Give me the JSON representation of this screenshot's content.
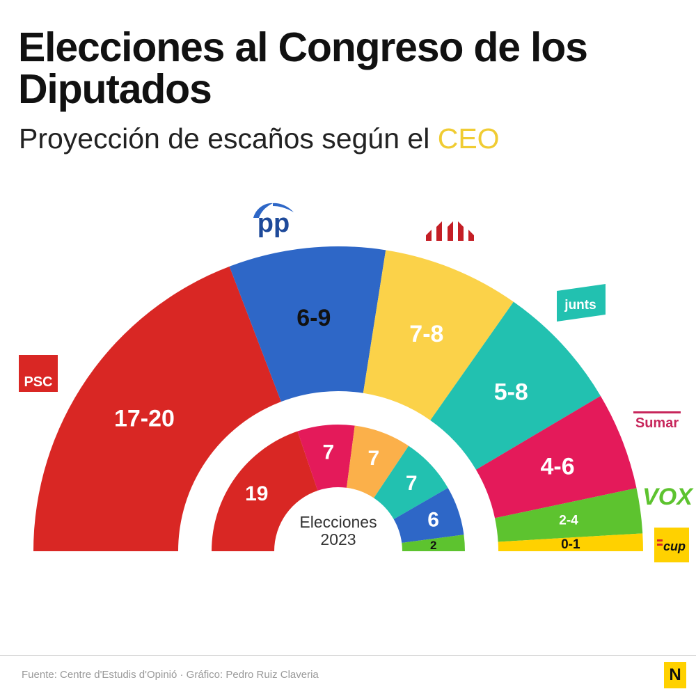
{
  "title": "Elecciones al Congreso de los Diputados",
  "subtitle": {
    "prefix": "Proyección de escaños según el ",
    "highlight": "CEO"
  },
  "source": "Fuente: Centre d'Estudis d'Opinió · Gráfico: Pedro Ruiz Claveria",
  "brand_logo": "N",
  "chart_data": [
    {
      "type": "parliament-donut",
      "name_text": "Proyección CEO",
      "parties": [
        {
          "party": "PSC",
          "label": "17-20",
          "min": 17,
          "max": 20,
          "value": 18.5,
          "color": "#d92724",
          "logo": "psc-logo"
        },
        {
          "party": "PP",
          "label": "6-9",
          "min": 6,
          "max": 9,
          "value": 8,
          "color": "#2e67c7",
          "logo": "pp-logo"
        },
        {
          "party": "ERC",
          "label": "7-8",
          "min": 7,
          "max": 8,
          "value": 7,
          "color": "#fbd249",
          "logo": "erc-logo"
        },
        {
          "party": "Junts",
          "label": "5-8",
          "min": 5,
          "max": 8,
          "value": 6.5,
          "color": "#22c1b0",
          "logo": "junts-logo"
        },
        {
          "party": "Sumar",
          "label": "4-6",
          "min": 4,
          "max": 6,
          "value": 5,
          "color": "#e41a5a",
          "logo": "sumar-logo"
        },
        {
          "party": "Vox",
          "label": "2-4",
          "min": 2,
          "max": 4,
          "value": 2.3,
          "color": "#5dc32f",
          "logo": "vox-logo"
        },
        {
          "party": "CUP",
          "label": "0-1",
          "min": 0,
          "max": 1,
          "value": 0.9,
          "color": "#ffd100",
          "logo": "cup-logo"
        }
      ]
    },
    {
      "type": "parliament-donut",
      "center_label": [
        "Elecciones",
        "2023"
      ],
      "parties": [
        {
          "party": "PSC",
          "value": 19,
          "label": "19",
          "color": "#d92724"
        },
        {
          "party": "Sumar",
          "value": 7,
          "label": "7",
          "color": "#e41a5a"
        },
        {
          "party": "ERC",
          "value": 7,
          "label": "7",
          "color": "#fbb04a"
        },
        {
          "party": "Junts",
          "value": 7,
          "label": "7",
          "color": "#22c1b0"
        },
        {
          "party": "PP",
          "value": 6,
          "label": "6",
          "color": "#2e67c7"
        },
        {
          "party": "Vox",
          "value": 2,
          "label": "2",
          "color": "#5dc32f"
        }
      ]
    }
  ],
  "logos": {
    "psc": "PSC",
    "pp": "pp",
    "junts": "junts",
    "sumar": "Sumar",
    "vox": "VOX",
    "cup": "cup"
  }
}
